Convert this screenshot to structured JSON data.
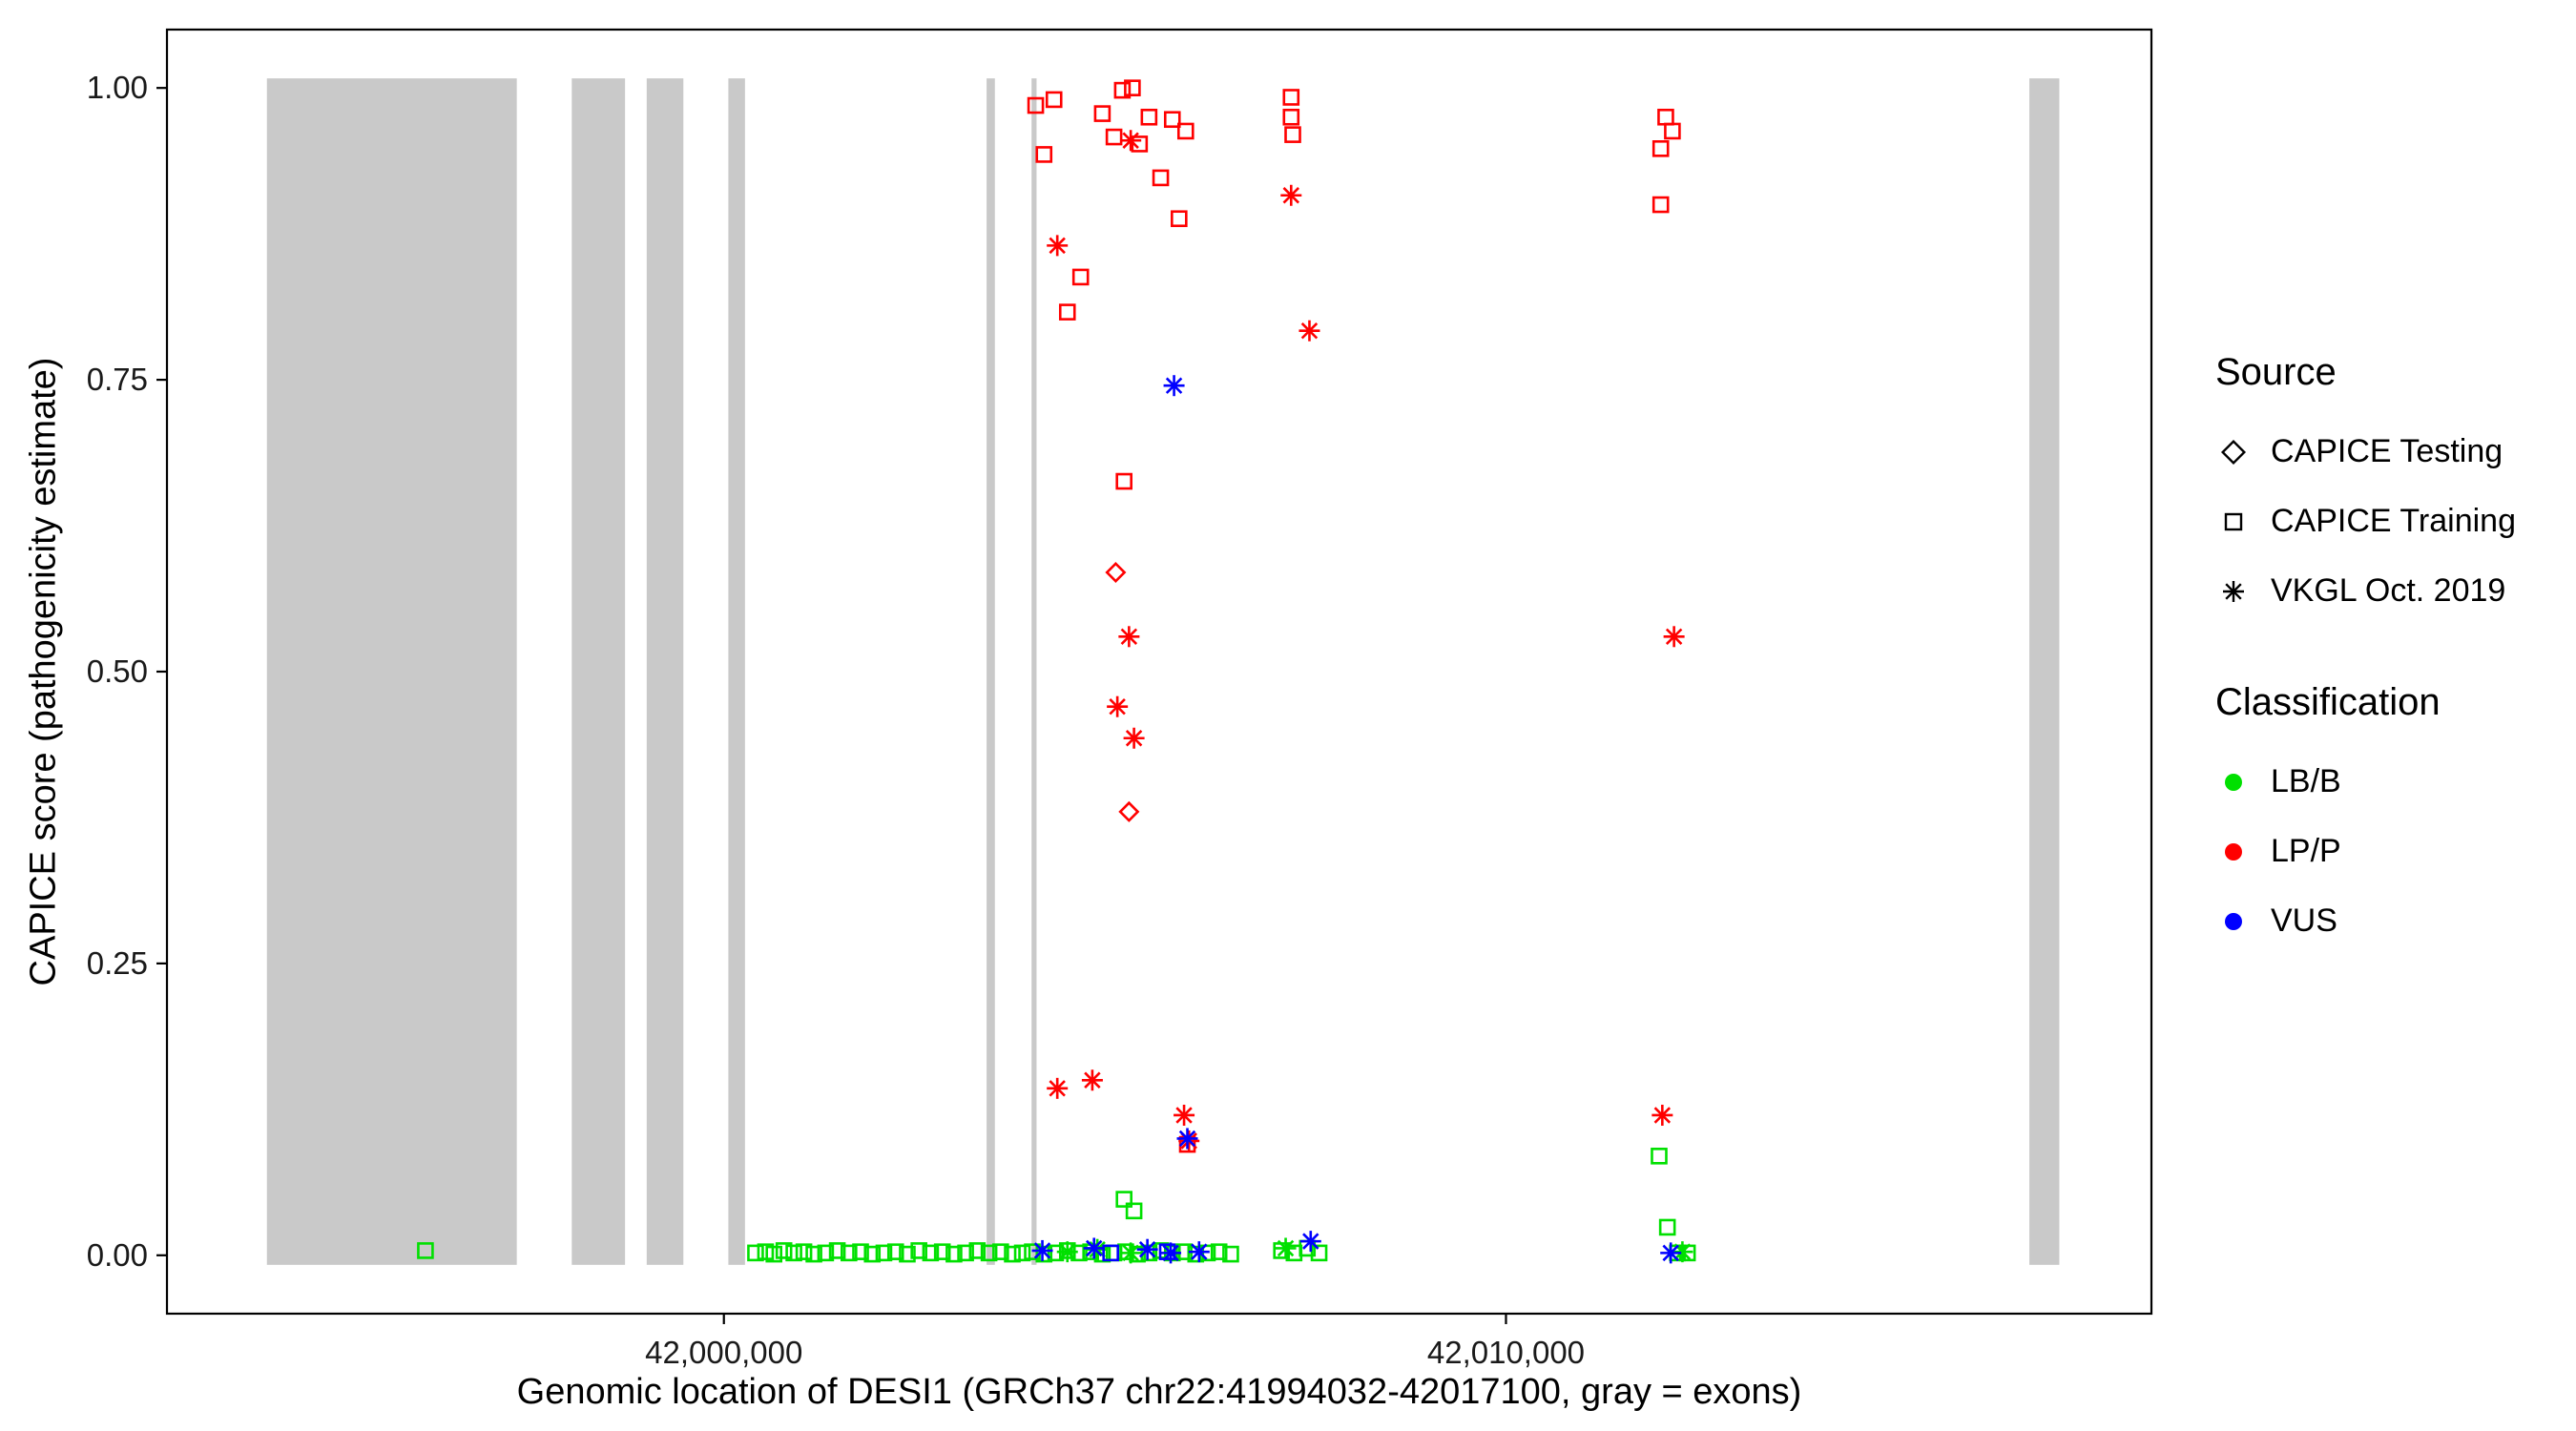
{
  "chart_data": {
    "type": "scatter",
    "title": "",
    "xlabel": "Genomic location of DESI1 (GRCh37 chr22:41994032-42017100, gray = exons)",
    "ylabel": "CAPICE score (pathogenicity estimate)",
    "x_domain": [
      41992879,
      42018253
    ],
    "y_domain": [
      -0.05,
      1.05
    ],
    "grid": "off",
    "x_ticks": [
      {
        "value": 42000000,
        "label": "42,000,000"
      },
      {
        "value": 42010000,
        "label": "42,010,000"
      }
    ],
    "y_ticks": [
      {
        "value": 0.0,
        "label": "0.00"
      },
      {
        "value": 0.25,
        "label": "0.25"
      },
      {
        "value": 0.5,
        "label": "0.50"
      },
      {
        "value": 0.75,
        "label": "0.75"
      },
      {
        "value": 1.0,
        "label": "1.00"
      }
    ],
    "exon_color": "#c9c9c9",
    "exons": [
      [
        41994157,
        41997352
      ],
      [
        41998055,
        41998736
      ],
      [
        41999013,
        41999482
      ],
      [
        42000057,
        42000270
      ],
      [
        42003359,
        42003465
      ],
      [
        42003934,
        42003998
      ],
      [
        42016692,
        42017075
      ]
    ],
    "series": [
      {
        "name": "CAPICE Training / LB/B",
        "source": "CAPICE Training",
        "classification": "LB/B",
        "shape": "square",
        "color": "#00e000",
        "points": [
          [
            41996184,
            0.004
          ],
          [
            42000405,
            0.002
          ],
          [
            42000533,
            0.003
          ],
          [
            42000640,
            0.001
          ],
          [
            42000768,
            0.004
          ],
          [
            42000895,
            0.002
          ],
          [
            42001023,
            0.003
          ],
          [
            42001151,
            0.001
          ],
          [
            42001301,
            0.002
          ],
          [
            42001450,
            0.004
          ],
          [
            42001599,
            0.002
          ],
          [
            42001748,
            0.003
          ],
          [
            42001897,
            0.001
          ],
          [
            42002046,
            0.002
          ],
          [
            42002196,
            0.003
          ],
          [
            42002345,
            0.001
          ],
          [
            42002494,
            0.004
          ],
          [
            42002643,
            0.002
          ],
          [
            42002793,
            0.003
          ],
          [
            42002942,
            0.001
          ],
          [
            42003091,
            0.002
          ],
          [
            42003240,
            0.004
          ],
          [
            42003390,
            0.002
          ],
          [
            42003539,
            0.003
          ],
          [
            42003688,
            0.001
          ],
          [
            42003816,
            0.002
          ],
          [
            42003944,
            0.003
          ],
          [
            42004093,
            0.001
          ],
          [
            42004242,
            0.002
          ],
          [
            42004392,
            0.004
          ],
          [
            42004541,
            0.002
          ],
          [
            42004690,
            0.003
          ],
          [
            42004839,
            0.001
          ],
          [
            42004988,
            0.002
          ],
          [
            42005138,
            0.003
          ],
          [
            42005287,
            0.001
          ],
          [
            42005436,
            0.002
          ],
          [
            42005585,
            0.004
          ],
          [
            42005734,
            0.002
          ],
          [
            42005884,
            0.003
          ],
          [
            42006033,
            0.001
          ],
          [
            42006182,
            0.002
          ],
          [
            42006331,
            0.003
          ],
          [
            42006480,
            0.001
          ],
          [
            42005117,
            0.048
          ],
          [
            42005244,
            0.038
          ],
          [
            42007130,
            0.004
          ],
          [
            42007290,
            0.002
          ],
          [
            42007460,
            0.006
          ],
          [
            42007610,
            0.002
          ],
          [
            42011958,
            0.085
          ],
          [
            42012064,
            0.024
          ],
          [
            42012192,
            0.002
          ],
          [
            42012320,
            0.002
          ]
        ]
      },
      {
        "name": "VKGL Oct. 2019 / LB/B",
        "source": "VKGL Oct. 2019",
        "classification": "LB/B",
        "shape": "asterisk",
        "color": "#00e000",
        "points": [
          [
            42004392,
            0.003
          ],
          [
            42004775,
            0.005
          ],
          [
            42005202,
            0.002
          ],
          [
            42007183,
            0.006
          ],
          [
            42012256,
            0.003
          ]
        ]
      },
      {
        "name": "CAPICE Training / LP/P",
        "source": "CAPICE Training",
        "classification": "LP/P",
        "shape": "square",
        "color": "#ff0000",
        "points": [
          [
            42003987,
            0.985
          ],
          [
            42004221,
            0.99
          ],
          [
            42004093,
            0.943
          ],
          [
            42004392,
            0.808
          ],
          [
            42004562,
            0.838
          ],
          [
            42004839,
            0.978
          ],
          [
            42004988,
            0.958
          ],
          [
            42005095,
            0.998
          ],
          [
            42005223,
            1.0
          ],
          [
            42005314,
            0.952
          ],
          [
            42005436,
            0.975
          ],
          [
            42005585,
            0.923
          ],
          [
            42005734,
            0.973
          ],
          [
            42005820,
            0.888
          ],
          [
            42005905,
            0.963
          ],
          [
            42007253,
            0.992
          ],
          [
            42007253,
            0.975
          ],
          [
            42007274,
            0.96
          ],
          [
            42005117,
            0.663
          ],
          [
            42005926,
            0.095
          ],
          [
            42012043,
            0.975
          ],
          [
            42012128,
            0.963
          ],
          [
            42011979,
            0.948
          ],
          [
            42011979,
            0.9
          ]
        ]
      },
      {
        "name": "CAPICE Testing / LP/P",
        "source": "CAPICE Testing",
        "classification": "LP/P",
        "shape": "diamond",
        "color": "#ff0000",
        "points": [
          [
            42005010,
            0.585
          ],
          [
            42005180,
            0.38
          ]
        ]
      },
      {
        "name": "VKGL Oct. 2019 / LP/P",
        "source": "VKGL Oct. 2019",
        "classification": "LP/P",
        "shape": "asterisk",
        "color": "#ff0000",
        "points": [
          [
            42004263,
            0.865
          ],
          [
            42005202,
            0.955
          ],
          [
            42007253,
            0.908
          ],
          [
            42007487,
            0.792
          ],
          [
            42005180,
            0.53
          ],
          [
            42005031,
            0.47
          ],
          [
            42005244,
            0.443
          ],
          [
            42004263,
            0.143
          ],
          [
            42004711,
            0.15
          ],
          [
            42005884,
            0.12
          ],
          [
            42005947,
            0.098
          ],
          [
            42012149,
            0.53
          ],
          [
            42011999,
            0.12
          ]
        ]
      },
      {
        "name": "CAPICE Training / VUS",
        "source": "CAPICE Training",
        "classification": "VUS",
        "shape": "square",
        "color": "#0000ff",
        "points": [
          [
            42004946,
            0.002
          ],
          [
            42005670,
            0.003
          ]
        ]
      },
      {
        "name": "VKGL Oct. 2019 / VUS",
        "source": "VKGL Oct. 2019",
        "classification": "VUS",
        "shape": "asterisk",
        "color": "#0000ff",
        "points": [
          [
            42005756,
            0.745
          ],
          [
            42005926,
            0.1
          ],
          [
            42004072,
            0.004
          ],
          [
            42004733,
            0.006
          ],
          [
            42005415,
            0.005
          ],
          [
            42005713,
            0.002
          ],
          [
            42006076,
            0.003
          ],
          [
            42007503,
            0.012
          ],
          [
            42012107,
            0.002
          ]
        ]
      }
    ],
    "legend": {
      "source_title": "Source",
      "source_items": [
        {
          "label": "CAPICE Testing",
          "shape": "diamond"
        },
        {
          "label": "CAPICE Training",
          "shape": "square"
        },
        {
          "label": "VKGL Oct. 2019",
          "shape": "asterisk"
        }
      ],
      "classification_title": "Classification",
      "classification_items": [
        {
          "label": "LB/B",
          "color": "#00e000"
        },
        {
          "label": "LP/P",
          "color": "#ff0000"
        },
        {
          "label": "VUS",
          "color": "#0000ff"
        }
      ]
    }
  }
}
